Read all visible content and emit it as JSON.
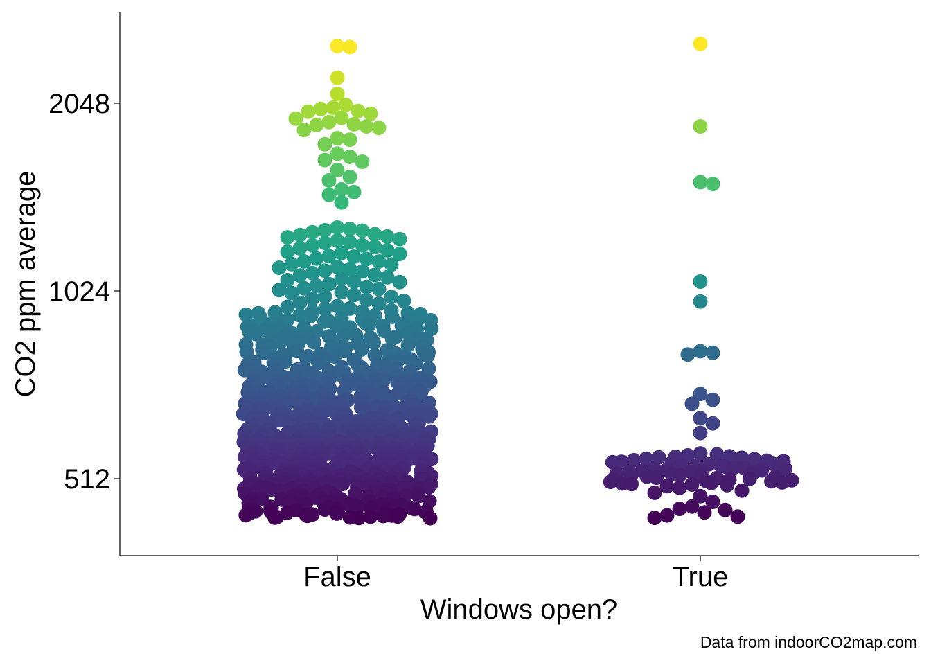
{
  "chart_data": {
    "type": "scatter",
    "subtype": "beeswarm",
    "title": "",
    "xlabel": "Windows open?",
    "ylabel": "CO2 ppm average",
    "caption": "Data from indoorCO2map.com",
    "categories": [
      "False",
      "True"
    ],
    "y_scale": "log2",
    "y_ticks": [
      512,
      1024,
      2048
    ],
    "ylim": [
      420,
      2600
    ],
    "grid": false,
    "legend": "none",
    "color_scale": "viridis",
    "colors": {
      "low": "#440154",
      "high": "#FDE725"
    },
    "series": [
      {
        "category": "False",
        "approx_point_count": 900,
        "quantiles_ppm": {
          "min": 442,
          "p10": 490,
          "p25": 540,
          "median": 620,
          "p75": 760,
          "p90": 950,
          "p97": 1300,
          "max": 2530
        },
        "high_points_ppm": [
          2530,
          2520,
          2250,
          2120,
          2035,
          2015,
          2005,
          1990,
          1985,
          1970,
          1940,
          1935,
          1910,
          1895,
          1890,
          1880,
          1870,
          1855,
          1800,
          1790,
          1760,
          1700,
          1680,
          1660,
          1650,
          1600,
          1560,
          1540,
          1490,
          1475,
          1460,
          1420
        ]
      },
      {
        "category": "True",
        "values_ppm": [
          2550,
          1880,
          1530,
          1520,
          1060,
          985,
          820,
          815,
          810,
          700,
          685,
          675,
          640,
          628,
          606,
          562,
          560,
          558,
          556,
          555,
          554,
          553,
          551,
          550,
          548,
          547,
          546,
          545,
          544,
          543,
          542,
          541,
          540,
          539,
          538,
          537,
          536,
          535,
          533,
          532,
          531,
          530,
          529,
          528,
          527,
          526,
          525,
          524,
          523,
          522,
          521,
          520,
          519,
          518,
          516,
          515,
          514,
          513,
          512,
          511,
          510,
          509,
          508,
          507,
          506,
          505,
          504,
          503,
          502,
          501,
          500,
          498,
          495,
          490,
          486,
          480,
          470,
          462,
          458,
          456,
          452,
          447,
          445,
          443
        ]
      }
    ]
  }
}
